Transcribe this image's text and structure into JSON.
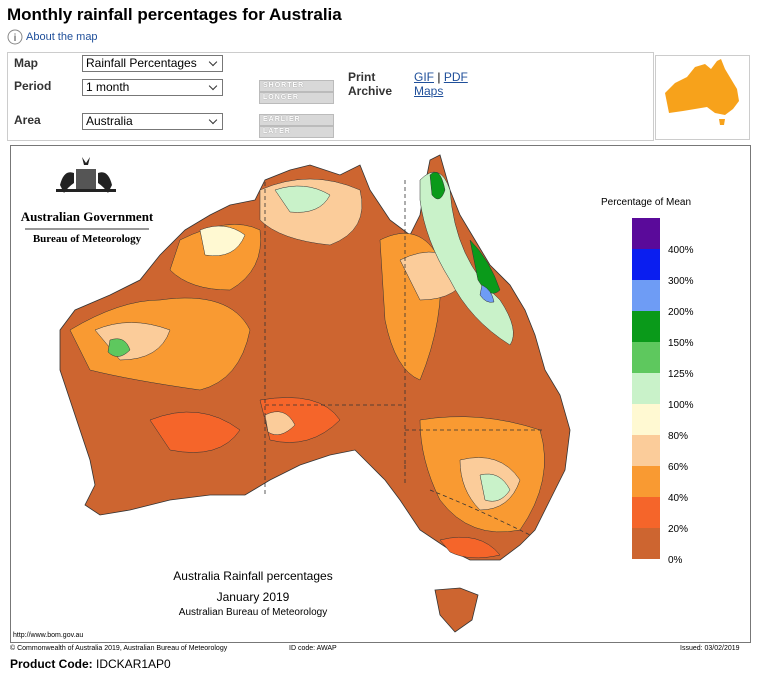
{
  "header": {
    "title": "Monthly rainfall percentages for Australia",
    "about_link": "About the map"
  },
  "controls": {
    "map": {
      "label": "Map",
      "value": "Rainfall Percentages"
    },
    "period": {
      "label": "Period",
      "value": "1 month"
    },
    "area": {
      "label": "Area",
      "value": "Australia"
    },
    "buttons": [
      "SHORTER",
      "LONGER",
      "EARLIER",
      "LATER"
    ],
    "print": {
      "label": "Print",
      "links": [
        "GIF",
        "PDF"
      ],
      "separator": "|"
    },
    "archive": {
      "label": "Archive",
      "link": "Maps"
    }
  },
  "map": {
    "agency": "Australian Government",
    "bureau": "Bureau of Meteorology",
    "legend": {
      "title": "Percentage of Mean",
      "colors": [
        "#5a0a9a",
        "#0a1ef0",
        "#6e9cf5",
        "#0a9a1a",
        "#5ec85e",
        "#c9f2c9",
        "#fff9d2",
        "#fbcc9a",
        "#f99a32",
        "#f5652a",
        "#cd6530"
      ],
      "labels": [
        "400%",
        "300%",
        "200%",
        "150%",
        "125%",
        "100%",
        "80%",
        "60%",
        "40%",
        "20%",
        "0%"
      ]
    },
    "caption": [
      "Australia Rainfall percentages",
      "January 2019",
      "Australian Bureau of Meteorology"
    ],
    "url": "http://www.bom.gov.au",
    "copyright": "© Commonwealth of Australia 2019, Australian Bureau of Meteorology",
    "id_code": "ID code: AWAP",
    "issued": "Issued: 03/02/2019"
  },
  "footer": {
    "label": "Product Code:",
    "value": "IDCKAR1AP0"
  }
}
